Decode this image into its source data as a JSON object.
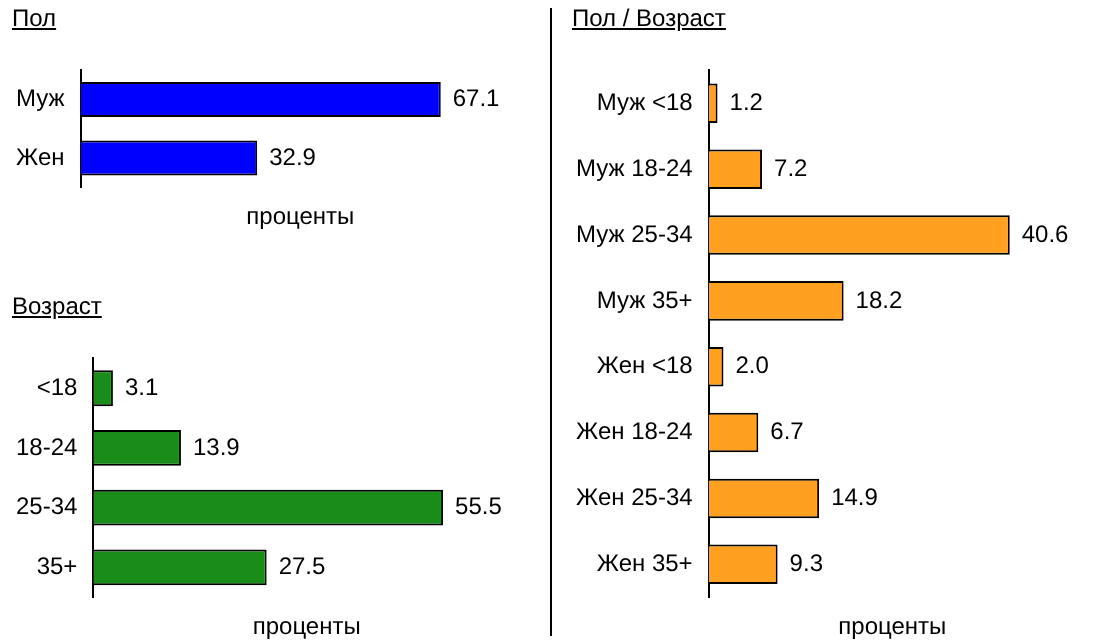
{
  "chart_data": [
    {
      "type": "bar",
      "orientation": "horizontal",
      "title": "Пол",
      "xlabel": "проценты",
      "tick_labels": "y",
      "categories": [
        "Муж",
        "Жен"
      ],
      "values": [
        67.1,
        32.9
      ],
      "value_labels": [
        "67.1",
        "32.9"
      ],
      "color": "#0000ff"
    },
    {
      "type": "bar",
      "orientation": "horizontal",
      "title": "Возраст",
      "xlabel": "проценты",
      "tick_labels": "y",
      "categories": [
        "<18",
        "18-24",
        "25-34",
        "35+"
      ],
      "values": [
        3.1,
        13.9,
        55.5,
        27.5
      ],
      "value_labels": [
        "3.1",
        "13.9",
        "55.5",
        "27.5"
      ],
      "color": "#1a8c1a"
    },
    {
      "type": "bar",
      "orientation": "horizontal",
      "title": "Пол / Возраст",
      "xlabel": "проценты",
      "tick_labels": "y",
      "categories": [
        "Муж <18",
        "Муж 18-24",
        "Муж 25-34",
        "Муж 35+",
        "Жен <18",
        "Жен 18-24",
        "Жен 25-34",
        "Жен 35+"
      ],
      "values": [
        1.2,
        7.2,
        40.6,
        18.2,
        2.0,
        6.7,
        14.9,
        9.3
      ],
      "value_labels": [
        "1.2",
        "7.2",
        "40.6",
        "18.2",
        "2.0",
        "6.7",
        "14.9",
        "9.3"
      ],
      "color": "#ffa020"
    }
  ]
}
